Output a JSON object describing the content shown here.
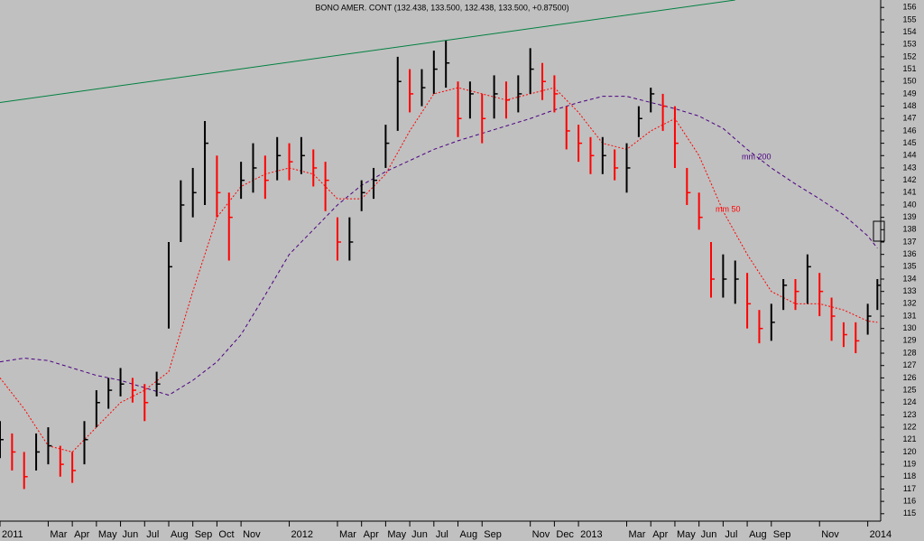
{
  "chart_data": {
    "type": "ohlc",
    "title": "BONO AMER. CONT (132.438, 133.500, 132.438, 133.500, +0.87500)",
    "xlim": [
      0,
      36.5
    ],
    "xticks": [
      {
        "value": 0,
        "label": "2011"
      },
      {
        "value": 2,
        "label": "Mar"
      },
      {
        "value": 3,
        "label": "Apr"
      },
      {
        "value": 4,
        "label": "May"
      },
      {
        "value": 5,
        "label": "Jun"
      },
      {
        "value": 6,
        "label": "Jul"
      },
      {
        "value": 7,
        "label": "Aug"
      },
      {
        "value": 8,
        "label": "Sep"
      },
      {
        "value": 9,
        "label": "Oct"
      },
      {
        "value": 10,
        "label": "Nov"
      },
      {
        "value": 12,
        "label": "2012"
      },
      {
        "value": 14,
        "label": "Mar"
      },
      {
        "value": 15,
        "label": "Apr"
      },
      {
        "value": 16,
        "label": "May"
      },
      {
        "value": 17,
        "label": "Jun"
      },
      {
        "value": 18,
        "label": "Jul"
      },
      {
        "value": 19,
        "label": "Aug"
      },
      {
        "value": 20,
        "label": "Sep"
      },
      {
        "value": 22,
        "label": "Nov"
      },
      {
        "value": 23,
        "label": "Dec"
      },
      {
        "value": 24,
        "label": "2013"
      },
      {
        "value": 26,
        "label": "Mar"
      },
      {
        "value": 27,
        "label": "Apr"
      },
      {
        "value": 28,
        "label": "May"
      },
      {
        "value": 29,
        "label": "Jun"
      },
      {
        "value": 30,
        "label": "Jul"
      },
      {
        "value": 31,
        "label": "Aug"
      },
      {
        "value": 32,
        "label": "Sep"
      },
      {
        "value": 34,
        "label": "Nov"
      },
      {
        "value": 36,
        "label": "2014"
      }
    ],
    "ylim": [
      114.4,
      156.6
    ],
    "yticks": [
      115,
      116,
      117,
      118,
      119,
      120,
      121,
      122,
      123,
      124,
      125,
      126,
      127,
      128,
      129,
      130,
      131,
      132,
      133,
      134,
      135,
      136,
      137,
      138,
      139,
      140,
      141,
      142,
      143,
      144,
      145,
      146,
      147,
      148,
      149,
      150,
      151,
      152,
      153,
      154,
      155,
      156
    ],
    "bars": {
      "up_color": "#000000",
      "down_color": "#ff0000",
      "x": [
        0,
        0.5,
        1,
        1.5,
        2,
        2.5,
        3,
        3.5,
        4,
        4.5,
        5,
        5.5,
        6,
        6.5,
        7,
        7.5,
        8,
        8.5,
        9,
        9.5,
        10,
        10.5,
        11,
        11.5,
        12,
        12.5,
        13,
        13.5,
        14,
        14.5,
        15,
        15.5,
        16,
        16.5,
        17,
        17.5,
        18,
        18.5,
        19,
        19.5,
        20,
        20.5,
        21,
        21.5,
        22,
        22.5,
        23,
        23.5,
        24,
        24.5,
        25,
        25.5,
        26,
        26.5,
        27,
        27.5,
        28,
        28.5,
        29,
        29.5,
        30,
        30.5,
        31,
        31.5,
        32,
        32.5,
        33,
        33.5,
        34,
        34.5,
        35,
        35.5,
        36,
        36.4
      ],
      "close": [
        121,
        120,
        118,
        120,
        120.5,
        119,
        118.5,
        121,
        124,
        125,
        125.5,
        125,
        124,
        125.5,
        135,
        140,
        141,
        145,
        141,
        139,
        142,
        143,
        142,
        144,
        143.5,
        144,
        143,
        142,
        137,
        137,
        141,
        142,
        145,
        150,
        149,
        149.5,
        151,
        151.5,
        147,
        149,
        147,
        149,
        148.5,
        149,
        151,
        150,
        149,
        146,
        145,
        144,
        144,
        143,
        143,
        147,
        149,
        148,
        145,
        141,
        139,
        134,
        134,
        134,
        132,
        130,
        130.5,
        133.5,
        133,
        135,
        133,
        131,
        129.5,
        129,
        131,
        133.5
      ],
      "high": [
        122.5,
        121.5,
        120,
        121.5,
        122,
        120.5,
        120,
        122.5,
        125,
        126,
        126.8,
        126,
        125.5,
        126.5,
        137,
        142,
        143,
        146.8,
        144,
        141,
        143.5,
        145,
        144,
        145.5,
        145,
        145.5,
        144.5,
        143.5,
        139,
        139,
        142,
        143,
        146.5,
        152,
        151,
        151,
        152.5,
        153.3,
        150,
        150,
        149,
        150.5,
        150,
        150.5,
        152.7,
        151.5,
        150.5,
        148,
        146.5,
        145.5,
        145.5,
        144.5,
        145,
        148,
        149.5,
        149,
        148,
        143,
        141,
        137,
        136,
        135.5,
        134.5,
        131.5,
        132,
        134,
        134,
        136,
        134.5,
        132.5,
        130.5,
        130.5,
        132,
        134
      ],
      "low": [
        119.5,
        118.5,
        117,
        118.5,
        119,
        118,
        117.5,
        119,
        122,
        123.5,
        124.5,
        124,
        122.5,
        124.5,
        130,
        137,
        139,
        140,
        139,
        135.5,
        140.5,
        141,
        140.5,
        142,
        142,
        142.5,
        141.5,
        139.5,
        135.5,
        135.5,
        139.5,
        140.5,
        143,
        146,
        147.5,
        148,
        149,
        149.5,
        145.5,
        147,
        145,
        147,
        147,
        147.5,
        149,
        148.5,
        147.5,
        144.5,
        143.5,
        142.5,
        142.5,
        142,
        141,
        145.5,
        147.5,
        146,
        143,
        140,
        138,
        132.5,
        132.5,
        132,
        130,
        128.8,
        129,
        131.5,
        131.5,
        132,
        131,
        129,
        128.5,
        128,
        129.5,
        131.5
      ]
    },
    "lines": [
      {
        "label": "mm 200",
        "color": "#4b0082",
        "dash": "4,3",
        "x": [
          0,
          1,
          2,
          3,
          4,
          5,
          6,
          7,
          8,
          9,
          10,
          11,
          12,
          13,
          14,
          15,
          16,
          17,
          18,
          19,
          20,
          21,
          22,
          23,
          24,
          25,
          26,
          27,
          28,
          29,
          30,
          31,
          32,
          33,
          34,
          35,
          36,
          36.4
        ],
        "values": [
          127.3,
          127.6,
          127.4,
          126.8,
          126.2,
          125.8,
          125.2,
          124.6,
          125.8,
          127.3,
          129.5,
          132.7,
          136,
          138,
          140,
          141.6,
          142.7,
          143.6,
          144.5,
          145.2,
          145.8,
          146.4,
          147,
          147.7,
          148.3,
          148.8,
          148.8,
          148.3,
          147.8,
          147.2,
          146.2,
          144.5,
          143,
          141.7,
          140.5,
          139.2,
          137.5,
          136.5
        ]
      },
      {
        "label": "mm 50",
        "color": "#ff0000",
        "dash": "2,2",
        "x": [
          0,
          1,
          2,
          3,
          4,
          5,
          6,
          7,
          8,
          9,
          10,
          11,
          12,
          13,
          14,
          15,
          16,
          17,
          18,
          19,
          20,
          21,
          22,
          23,
          24,
          25,
          26,
          27,
          28,
          29,
          30,
          31,
          32,
          33,
          34,
          35,
          36,
          36.4
        ],
        "values": [
          126,
          123.5,
          120.5,
          120,
          122,
          124,
          125,
          126.5,
          133,
          139,
          141.5,
          142.5,
          143,
          142.5,
          140.5,
          140.5,
          142.5,
          146,
          149,
          149.5,
          149,
          148.5,
          149,
          149.5,
          147.5,
          145,
          144.5,
          146,
          147,
          144,
          139.5,
          136,
          133,
          132,
          132,
          131.5,
          130.6,
          130.5
        ]
      }
    ],
    "trend": {
      "color": "#008040",
      "x": [
        0,
        30.5
      ],
      "values": [
        148.3,
        156.6
      ]
    }
  }
}
